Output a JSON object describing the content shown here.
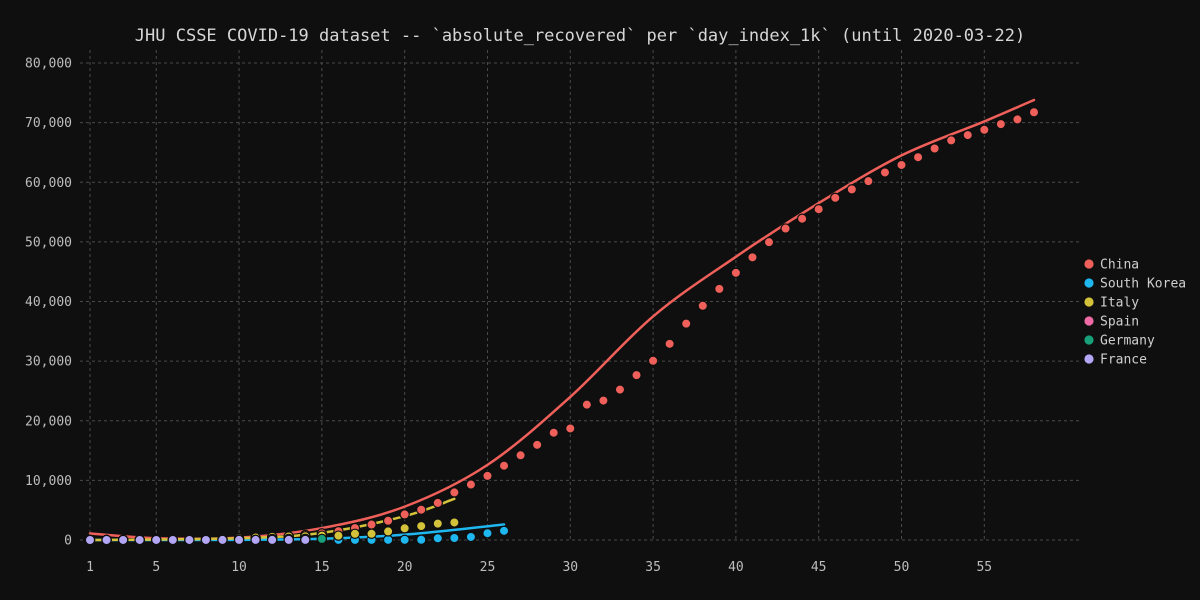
{
  "chart_data": {
    "type": "scatter",
    "title": "JHU CSSE COVID-19 dataset -- `absolute_recovered` per `day_index_1k` (until 2020-03-22)",
    "xlabel": "",
    "ylabel": "",
    "xlim": [
      1,
      59
    ],
    "ylim": [
      -1500,
      82000
    ],
    "xticks": [
      1,
      5,
      10,
      15,
      20,
      25,
      30,
      35,
      40,
      45,
      50,
      55
    ],
    "yticks": [
      0,
      10000,
      20000,
      30000,
      40000,
      50000,
      60000,
      70000,
      80000
    ],
    "ytick_labels": [
      "0",
      "10,000",
      "20,000",
      "30,000",
      "40,000",
      "50,000",
      "60,000",
      "70,000",
      "80,000"
    ],
    "grid": true,
    "legend": "right",
    "series": [
      {
        "name": "China",
        "color": "#f0605a",
        "x": [
          1,
          2,
          3,
          4,
          5,
          6,
          7,
          8,
          9,
          10,
          11,
          12,
          13,
          14,
          15,
          16,
          17,
          18,
          19,
          20,
          21,
          22,
          23,
          24,
          25,
          26,
          27,
          28,
          29,
          30,
          31,
          32,
          33,
          34,
          35,
          36,
          37,
          38,
          39,
          40,
          41,
          42,
          43,
          44,
          45,
          46,
          47,
          48,
          49,
          50,
          51,
          52,
          53,
          54,
          55,
          56,
          57,
          58
        ],
        "y": [
          28,
          30,
          36,
          39,
          49,
          58,
          101,
          120,
          135,
          214,
          275,
          463,
          614,
          843,
          1112,
          1477,
          1999,
          2596,
          3219,
          4295,
          5082,
          6217,
          7977,
          9298,
          10755,
          12462,
          14206,
          15962,
          17994,
          18704,
          22699,
          23383,
          25227,
          27650,
          30053,
          32898,
          36291,
          39279,
          42118,
          44810,
          47410,
          49955,
          52240,
          53888,
          55478,
          57389,
          58804,
          60181,
          61644,
          62901,
          64196,
          65660,
          67017,
          67910,
          68798,
          69755,
          70535,
          71740
        ],
        "fit": [
          [
            1,
            1100
          ],
          [
            5,
            300
          ],
          [
            10,
            400
          ],
          [
            15,
            2000
          ],
          [
            20,
            5600
          ],
          [
            25,
            12600
          ],
          [
            30,
            24000
          ],
          [
            35,
            37500
          ],
          [
            40,
            47500
          ],
          [
            45,
            56500
          ],
          [
            50,
            64500
          ],
          [
            55,
            70200
          ],
          [
            58,
            73800
          ]
        ]
      },
      {
        "name": "South Korea",
        "color": "#1fb7f0",
        "x": [
          1,
          2,
          3,
          4,
          5,
          6,
          7,
          8,
          9,
          10,
          11,
          12,
          13,
          14,
          15,
          16,
          17,
          18,
          19,
          20,
          21,
          22,
          23,
          24,
          25,
          26
        ],
        "y": [
          0,
          0,
          0,
          0,
          0,
          1,
          1,
          3,
          3,
          7,
          7,
          7,
          10,
          10,
          16,
          16,
          18,
          22,
          27,
          30,
          41,
          288,
          333,
          510,
          1137,
          1540
        ],
        "fit": [
          [
            1,
            0
          ],
          [
            10,
            30
          ],
          [
            15,
            200
          ],
          [
            20,
            900
          ],
          [
            26,
            2600
          ]
        ]
      },
      {
        "name": "Italy",
        "color": "#d4c33a",
        "x": [
          1,
          2,
          3,
          4,
          5,
          6,
          7,
          8,
          9,
          10,
          11,
          12,
          13,
          14,
          15,
          16,
          17,
          18,
          19,
          20,
          21,
          22,
          23
        ],
        "y": [
          0,
          1,
          2,
          45,
          46,
          46,
          83,
          149,
          160,
          276,
          414,
          523,
          589,
          622,
          724,
          724,
          1045,
          1045,
          1439,
          1966,
          2335,
          2749,
          2941
        ],
        "fit": [
          [
            1,
            0
          ],
          [
            10,
            300
          ],
          [
            15,
            1200
          ],
          [
            20,
            4000
          ],
          [
            23,
            6900
          ]
        ]
      },
      {
        "name": "Spain",
        "color": "#f06aa5",
        "x": [
          1,
          2,
          3,
          4,
          5,
          6,
          7,
          8,
          9,
          10,
          11,
          12,
          13,
          14
        ],
        "y": [
          0,
          0,
          0,
          0,
          0,
          2,
          2,
          2,
          2,
          30,
          30,
          183,
          183,
          193
        ],
        "fit": []
      },
      {
        "name": "Germany",
        "color": "#18a07a",
        "x": [
          15
        ],
        "y": [
          180
        ],
        "fit": []
      },
      {
        "name": "France",
        "color": "#b3a6f5",
        "x": [
          1,
          2,
          3,
          4,
          5,
          6,
          7,
          8,
          9,
          10,
          11,
          12,
          13,
          14
        ],
        "y": [
          2,
          2,
          4,
          4,
          4,
          4,
          4,
          4,
          12,
          12,
          12,
          12,
          12,
          12
        ],
        "fit": []
      }
    ]
  }
}
